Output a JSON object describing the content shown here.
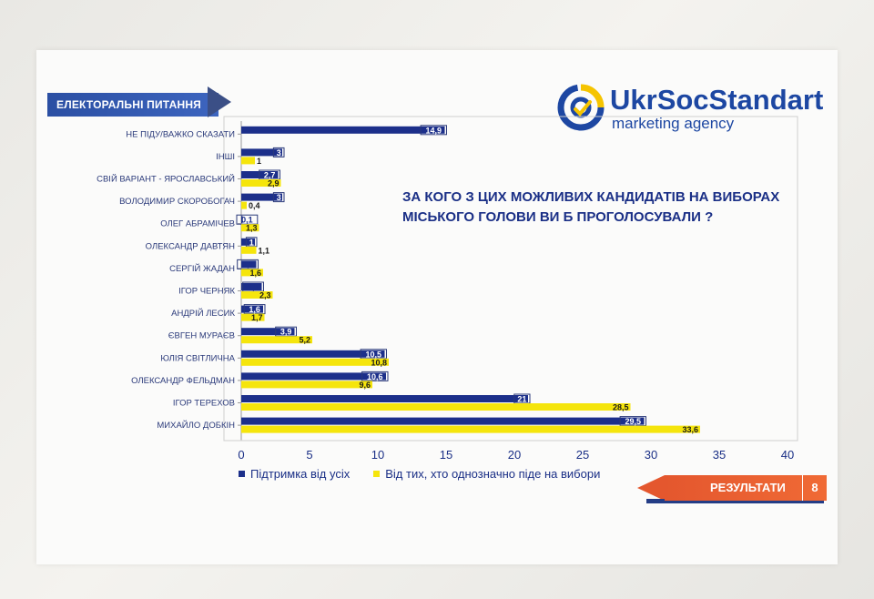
{
  "slide": {
    "section_tag": "ЕЛЕКТОРАЛЬНІ ПИТАННЯ",
    "logo_name": "UkrSocStandart",
    "logo_sub": "marketing agency",
    "question_line1": "ЗА КОГО З ЦИХ МОЖЛИВИХ КАНДИДАТІВ НА ВИБОРАХ",
    "question_line2": "МІСЬКОГО ГОЛОВИ  ВИ Б ПРОГОЛОСУВАЛИ ?",
    "results_label": "РЕЗУЛЬТАТИ",
    "page_number": "8"
  },
  "colors": {
    "series1": "#1c2f8a",
    "series2": "#f5e50c",
    "accent_orange": "#e4572e",
    "brand_blue": "#1d47a2"
  },
  "chart_data": {
    "type": "bar",
    "orientation": "horizontal",
    "categories": [
      "НЕ ПІДУ/ВАЖКО СКАЗАТИ",
      "ІНШІ",
      "СВІЙ ВАРІАНТ - ЯРОСЛАВСЬКИЙ",
      "ВОЛОДИМИР СКОРОБОГАЧ",
      "ОЛЕГ АБРАМІЧЕВ",
      "ОЛЕКСАНДР ДАВТЯН",
      "СЕРГІЙ ЖАДАН",
      "ІГОР ЧЕРНЯК",
      "АНДРІЙ ЛЕСИК",
      "ЄВГЕН МУРАЄВ",
      "ЮЛІЯ СВІТЛИЧНА",
      "ОЛЕКСАНДР ФЕЛЬДМАН",
      "ІГОР ТЕРЕХОВ",
      "МИХАЙЛО ДОБКІН"
    ],
    "series": [
      {
        "name": "Підтримка від усіх",
        "values": [
          14.9,
          3,
          2.7,
          3,
          0.1,
          1,
          1.1,
          1.5,
          1.6,
          3.9,
          10.5,
          10.6,
          21,
          29.5
        ],
        "labels": [
          "14,9",
          "3",
          "2,7",
          "3",
          "0,1",
          "1",
          "1,1",
          "1,5",
          "1,6",
          "3,9",
          "10,5",
          "10,6",
          "21",
          "29,5"
        ]
      },
      {
        "name": "Від тих, хто однозначно піде на вибори",
        "values": [
          null,
          1,
          2.9,
          0.4,
          1.3,
          1.1,
          1.6,
          2.3,
          1.7,
          5.2,
          10.8,
          9.6,
          28.5,
          33.6
        ],
        "labels": [
          "",
          "1",
          "2,9",
          "0,4",
          "1,3",
          "1,1",
          "1,6",
          "2,3",
          "1,7",
          "5,2",
          "10,8",
          "9,6",
          "28,5",
          "33,6"
        ]
      }
    ],
    "x_ticks": [
      "0",
      "5",
      "10",
      "15",
      "20",
      "25",
      "30",
      "35",
      "40"
    ],
    "xlim": [
      0,
      40
    ],
    "grid": false,
    "legend_position": "bottom"
  }
}
